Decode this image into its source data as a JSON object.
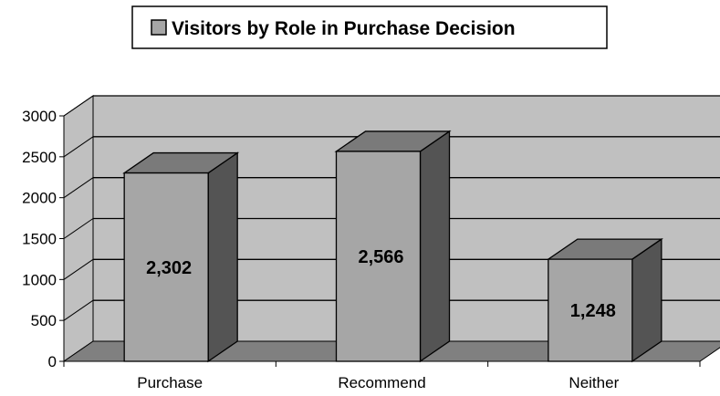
{
  "chart_data": {
    "type": "bar",
    "title": "",
    "xlabel": "",
    "ylabel": "",
    "categories": [
      "Purchase",
      "Recommend",
      "Neither"
    ],
    "series": [
      {
        "name": "Visitors by Role in Purchase Decision",
        "values": [
          2302,
          2566,
          1248
        ]
      }
    ],
    "data_labels": [
      "2,302",
      "2,566",
      "1,248"
    ],
    "yticks": [
      0,
      500,
      1000,
      1500,
      2000,
      2500,
      3000
    ],
    "ylim": [
      0,
      3000
    ],
    "grid": true,
    "legend": "top-center",
    "style": "3d-column",
    "colors": {
      "wall": "#c0c0c0",
      "floor": "#808080",
      "bar_front": "#a6a6a6",
      "bar_top": "#7a7a7a",
      "bar_side": "#545454",
      "legend_swatch": "#a6a6a6",
      "grid": "#000000"
    }
  }
}
